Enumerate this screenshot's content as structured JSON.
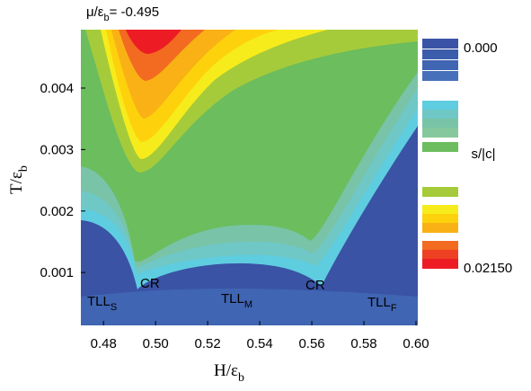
{
  "chart_data": {
    "type": "contour",
    "title": {
      "text": "μ/ε",
      "sub": "b",
      "rest": "= -0.495"
    },
    "x_label": {
      "text": "H/ε",
      "sub": "b"
    },
    "y_label": {
      "text": "T/ε",
      "sub": "b"
    },
    "xlim": [
      0.4713,
      0.6007
    ],
    "ylim": [
      0.00014,
      0.00495
    ],
    "xticks": [
      0.48,
      {
        "value": 0.5,
        "label": "0.50"
      },
      0.52,
      0.54,
      0.56,
      0.58,
      {
        "value": 0.6,
        "label": "0.60"
      }
    ],
    "yticks": [
      0.001,
      0.002,
      0.003,
      0.004
    ],
    "colorbar": {
      "label": "s/|c|",
      "zlim": [
        0,
        0.0215
      ],
      "ticks": [
        {
          "value": 0,
          "label": "0.000"
        },
        {
          "value": 0.0215,
          "label": "0.02150"
        }
      ],
      "colors": [
        "#3a53a4",
        "#3c5dab",
        "#4065b2",
        "#4670ba",
        "#5fcde0",
        "#6fc7c6",
        "#79c4a8",
        "#86c89d",
        "#6bbd5e",
        "#a6cb3a",
        "#f7ec1b",
        "#fdd20c",
        "#f9b115",
        "#f36a21",
        "#ee4023",
        "#ed1c24"
      ]
    },
    "annotations": [
      {
        "text": "TLL",
        "sub": "S"
      },
      {
        "text": "TLL",
        "sub": "M"
      },
      {
        "text": "TLL",
        "sub": "F"
      },
      {
        "text": "CR",
        "sub": ""
      },
      {
        "text": "CR",
        "sub": ""
      }
    ]
  }
}
